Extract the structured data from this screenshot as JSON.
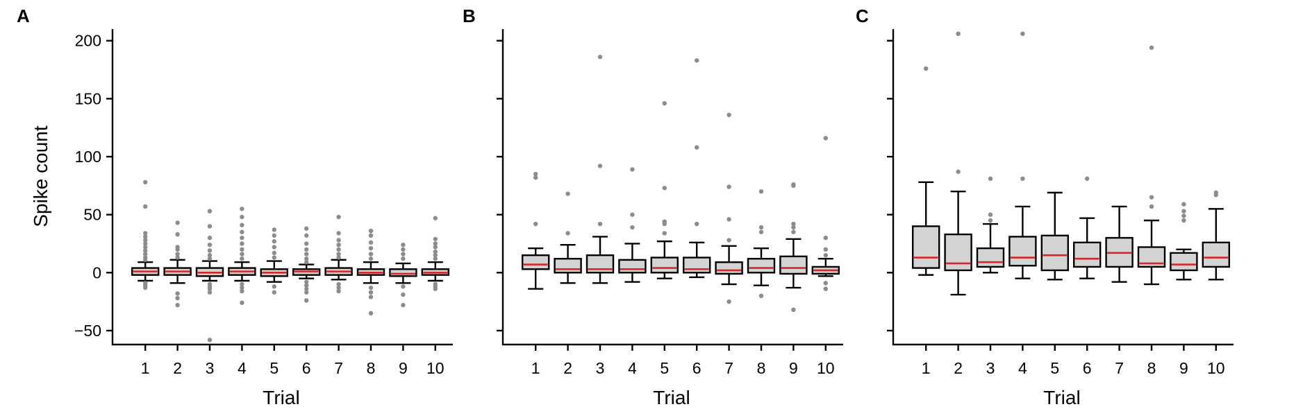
{
  "chart_data": {
    "type": "box",
    "ylabel": "Spike count",
    "ylim": [
      -62,
      210
    ],
    "yticks": [
      -50,
      0,
      50,
      100,
      150,
      200
    ],
    "panels": [
      {
        "letter": "A",
        "xlabel": "Trial",
        "categories": [
          "1",
          "2",
          "3",
          "4",
          "5",
          "6",
          "7",
          "8",
          "9",
          "10"
        ],
        "boxes": [
          {
            "q1": -2,
            "median": 1,
            "q3": 4,
            "whislo": -7,
            "whishi": 9,
            "fliers": [
              78,
              57,
              34,
              31,
              28,
              25,
              22,
              19,
              16,
              13,
              11,
              -9,
              -11,
              -13
            ]
          },
          {
            "q1": -2,
            "median": 1,
            "q3": 4,
            "whislo": -9,
            "whishi": 11,
            "fliers": [
              43,
              33,
              22,
              20,
              16,
              13,
              -18,
              -22,
              -28
            ]
          },
          {
            "q1": -3,
            "median": 0,
            "q3": 4,
            "whislo": -7,
            "whishi": 10,
            "fliers": [
              53,
              40,
              30,
              24,
              19,
              15,
              12,
              -10,
              -12,
              -14,
              -17,
              -58
            ]
          },
          {
            "q1": -2,
            "median": 1,
            "q3": 4,
            "whislo": -7,
            "whishi": 9,
            "fliers": [
              55,
              48,
              41,
              35,
              30,
              25,
              20,
              16,
              12,
              -10,
              -13,
              -16,
              -26
            ]
          },
          {
            "q1": -3,
            "median": 0,
            "q3": 3,
            "whislo": -8,
            "whishi": 10,
            "fliers": [
              37,
              32,
              27,
              22,
              17,
              13,
              -12,
              -17
            ]
          },
          {
            "q1": -2,
            "median": 1,
            "q3": 3,
            "whislo": -5,
            "whishi": 7,
            "fliers": [
              38,
              32,
              25,
              20,
              16,
              12,
              9,
              -8,
              -11,
              -14,
              -17,
              -24
            ]
          },
          {
            "q1": -2,
            "median": 1,
            "q3": 4,
            "whislo": -6,
            "whishi": 11,
            "fliers": [
              48,
              34,
              28,
              24,
              20,
              16,
              13,
              -10,
              -13,
              -16
            ]
          },
          {
            "q1": -2,
            "median": 0,
            "q3": 3,
            "whislo": -9,
            "whishi": 9,
            "fliers": [
              36,
              32,
              26,
              21,
              16,
              12,
              -13,
              -17,
              -21,
              -35
            ]
          },
          {
            "q1": -3,
            "median": -1,
            "q3": 3,
            "whislo": -9,
            "whishi": 8,
            "fliers": [
              24,
              20,
              16,
              12,
              -12,
              -19,
              -28
            ]
          },
          {
            "q1": -2,
            "median": 0,
            "q3": 3,
            "whislo": -7,
            "whishi": 9,
            "fliers": [
              47,
              29,
              25,
              22,
              18,
              15,
              12,
              -10,
              -12,
              -14
            ]
          }
        ]
      },
      {
        "letter": "B",
        "xlabel": "Trial",
        "categories": [
          "1",
          "2",
          "3",
          "4",
          "5",
          "6",
          "7",
          "8",
          "9",
          "10"
        ],
        "boxes": [
          {
            "q1": 3,
            "median": 7,
            "q3": 15,
            "whislo": -14,
            "whishi": 21,
            "fliers": [
              85,
              82,
              42
            ]
          },
          {
            "q1": 0,
            "median": 3,
            "q3": 12,
            "whislo": -9,
            "whishi": 24,
            "fliers": [
              68,
              34
            ]
          },
          {
            "q1": 0,
            "median": 3,
            "q3": 15,
            "whislo": -9,
            "whishi": 31,
            "fliers": [
              186,
              92,
              42
            ]
          },
          {
            "q1": 0,
            "median": 3,
            "q3": 11,
            "whislo": -8,
            "whishi": 25,
            "fliers": [
              89,
              50,
              39
            ]
          },
          {
            "q1": 0,
            "median": 4,
            "q3": 13,
            "whislo": -5,
            "whishi": 27,
            "fliers": [
              146,
              73,
              44,
              42,
              34
            ]
          },
          {
            "q1": 0,
            "median": 3,
            "q3": 13,
            "whislo": -4,
            "whishi": 26,
            "fliers": [
              183,
              108,
              42
            ]
          },
          {
            "q1": -1,
            "median": 2,
            "q3": 9,
            "whislo": -10,
            "whishi": 23,
            "fliers": [
              136,
              74,
              46,
              28,
              -25
            ]
          },
          {
            "q1": 0,
            "median": 4,
            "q3": 12,
            "whislo": -11,
            "whishi": 21,
            "fliers": [
              70,
              39,
              35,
              -20
            ]
          },
          {
            "q1": -1,
            "median": 4,
            "q3": 14,
            "whislo": -13,
            "whishi": 29,
            "fliers": [
              76,
              75,
              42,
              39,
              35,
              -32
            ]
          },
          {
            "q1": -1,
            "median": 2,
            "q3": 5,
            "whislo": -3,
            "whishi": 12,
            "fliers": [
              116,
              30,
              20,
              15,
              -9,
              -14
            ]
          }
        ]
      },
      {
        "letter": "C",
        "xlabel": "Trial",
        "categories": [
          "1",
          "2",
          "3",
          "4",
          "5",
          "6",
          "7",
          "8",
          "9",
          "10"
        ],
        "boxes": [
          {
            "q1": 4,
            "median": 13,
            "q3": 40,
            "whislo": -2,
            "whishi": 78,
            "fliers": [
              176
            ]
          },
          {
            "q1": 2,
            "median": 8,
            "q3": 33,
            "whislo": -19,
            "whishi": 70,
            "fliers": [
              206,
              87
            ]
          },
          {
            "q1": 5,
            "median": 9,
            "q3": 21,
            "whislo": 0,
            "whishi": 42,
            "fliers": [
              81,
              50,
              45
            ]
          },
          {
            "q1": 6,
            "median": 13,
            "q3": 31,
            "whislo": -5,
            "whishi": 57,
            "fliers": [
              206,
              81
            ]
          },
          {
            "q1": 2,
            "median": 15,
            "q3": 32,
            "whislo": -6,
            "whishi": 69,
            "fliers": []
          },
          {
            "q1": 5,
            "median": 12,
            "q3": 26,
            "whislo": -5,
            "whishi": 47,
            "fliers": [
              81
            ]
          },
          {
            "q1": 5,
            "median": 17,
            "q3": 30,
            "whislo": -8,
            "whishi": 57,
            "fliers": []
          },
          {
            "q1": 5,
            "median": 8,
            "q3": 22,
            "whislo": -10,
            "whishi": 45,
            "fliers": [
              194,
              65,
              57
            ]
          },
          {
            "q1": 2,
            "median": 7,
            "q3": 17,
            "whislo": -6,
            "whishi": 20,
            "fliers": [
              59,
              53,
              49,
              45
            ]
          },
          {
            "q1": 5,
            "median": 13,
            "q3": 26,
            "whislo": -6,
            "whishi": 55,
            "fliers": [
              69,
              67
            ]
          }
        ]
      }
    ]
  }
}
